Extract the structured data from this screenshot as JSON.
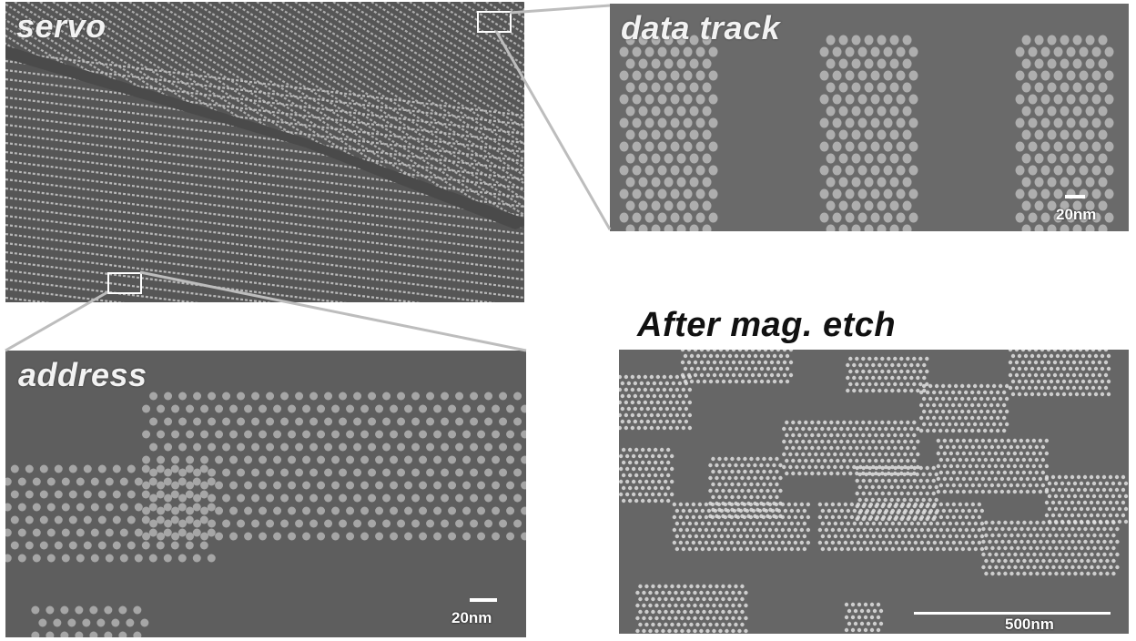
{
  "panels": {
    "servo": {
      "label": "servo"
    },
    "data_track": {
      "label": "data track",
      "scale_label": "20nm"
    },
    "address": {
      "label": "address",
      "scale_label": "20nm"
    },
    "etch": {
      "title": "After mag. etch",
      "scale_label": "500nm"
    }
  },
  "colors": {
    "panel_background": "#5c5c5c",
    "dot": "#c9c9c9",
    "connector": "#bdbdbd",
    "highlight_box": "#ffffff"
  }
}
